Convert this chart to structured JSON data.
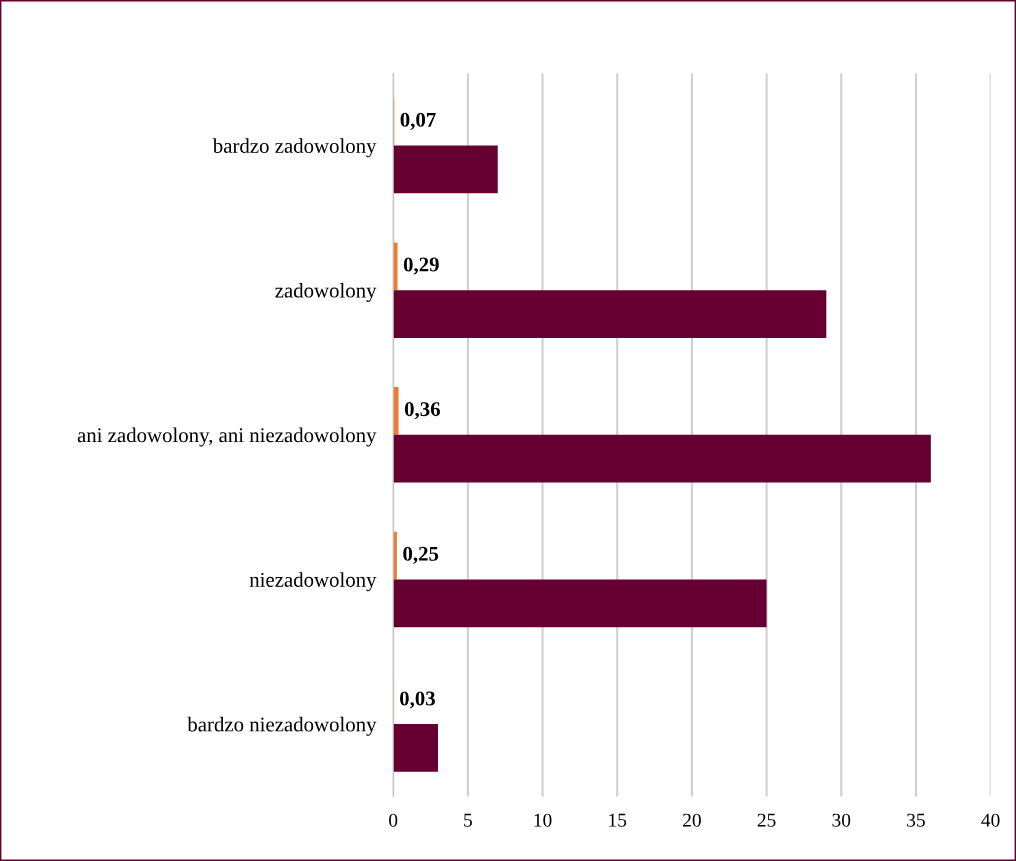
{
  "chart_data": {
    "type": "bar",
    "orientation": "horizontal",
    "categories": [
      "bardzo zadowolony",
      "zadowolony",
      "ani zadowolony, ani niezadowolony",
      "niezadowolony",
      "bardzo niezadowolony"
    ],
    "series": [
      {
        "color": "#ed7d31",
        "values": [
          0.07,
          0.29,
          0.36,
          0.25,
          0.03
        ],
        "value_labels": [
          "0,07",
          "0,29",
          "0,36",
          "0,25",
          "0,03"
        ]
      },
      {
        "color": "#660033",
        "values": [
          7,
          29,
          36,
          25,
          3
        ]
      }
    ],
    "xlim": [
      0,
      40
    ],
    "xticks": [
      0,
      5,
      10,
      15,
      20,
      25,
      30,
      35,
      40
    ],
    "grid": "x",
    "legend": false
  }
}
